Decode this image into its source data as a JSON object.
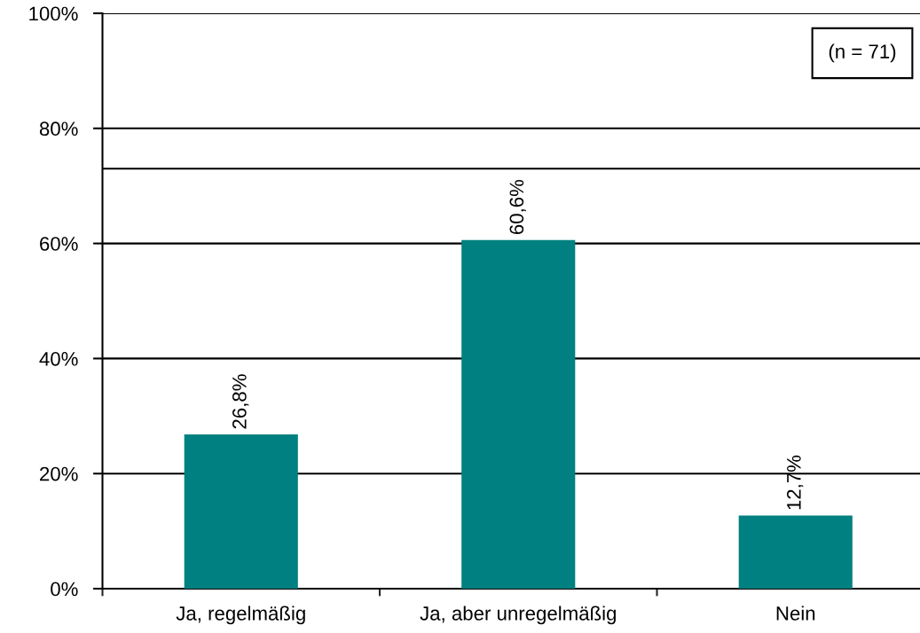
{
  "chart_data": {
    "type": "bar",
    "categories": [
      "Ja, regelmäßig",
      "Ja, aber unregelmäßig",
      "Nein"
    ],
    "values": [
      26.8,
      60.6,
      12.7
    ],
    "color": "#008080",
    "value_labels": [
      "26,8%",
      "60,6%",
      "12,7%"
    ],
    "ylim": [
      0,
      100
    ],
    "yticks": [
      {
        "value": 0,
        "label": "0%"
      },
      {
        "value": 20,
        "label": "20%"
      },
      {
        "value": 40,
        "label": "40%"
      },
      {
        "value": 60,
        "label": "60%"
      },
      {
        "value": 80,
        "label": "80%"
      },
      {
        "value": 100,
        "label": "100%"
      }
    ],
    "grid": "y",
    "ref_lines": [
      {
        "axis": "y",
        "value": 73,
        "color": "#000000"
      }
    ],
    "annotations": [
      "(n = 71)"
    ]
  }
}
